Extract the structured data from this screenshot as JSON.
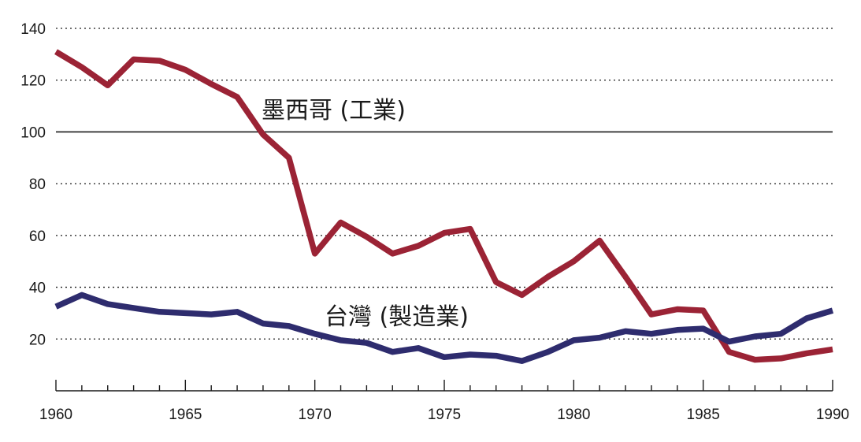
{
  "chart_data": {
    "type": "line",
    "title": "",
    "xlabel": "",
    "ylabel": "",
    "xlim": [
      1960,
      1990
    ],
    "ylim": [
      0,
      140
    ],
    "x_ticks": [
      1960,
      1965,
      1970,
      1975,
      1980,
      1985,
      1990
    ],
    "y_ticks": [
      20,
      40,
      60,
      80,
      100,
      120,
      140
    ],
    "reference_line": 100,
    "grid": "horizontal-dotted",
    "legend": "inline-labels",
    "x": [
      1960,
      1961,
      1962,
      1963,
      1964,
      1965,
      1966,
      1967,
      1968,
      1969,
      1970,
      1971,
      1972,
      1973,
      1974,
      1975,
      1976,
      1977,
      1978,
      1979,
      1980,
      1981,
      1982,
      1983,
      1984,
      1985,
      1986,
      1987,
      1988,
      1989,
      1990
    ],
    "series": [
      {
        "name": "墨西哥 (工業)",
        "color": "#9b2335",
        "values": [
          131,
          125,
          118,
          128,
          127.5,
          124,
          118.5,
          113.5,
          99,
          90,
          53,
          65,
          59.5,
          53,
          56,
          61,
          62.5,
          42,
          37,
          44,
          50,
          58,
          44,
          29.5,
          31.5,
          31,
          15,
          12,
          12.5,
          14.5,
          16
        ]
      },
      {
        "name": "台灣 (製造業)",
        "color": "#2e2c6e",
        "values": [
          32.5,
          37,
          33.5,
          32,
          30.5,
          30,
          29.5,
          30.5,
          26,
          25,
          22,
          19.5,
          18.5,
          15,
          16.5,
          13,
          14,
          13.5,
          11.5,
          15,
          19.5,
          20.5,
          23,
          22,
          23.5,
          24,
          19,
          21,
          22,
          28,
          31
        ]
      }
    ]
  }
}
